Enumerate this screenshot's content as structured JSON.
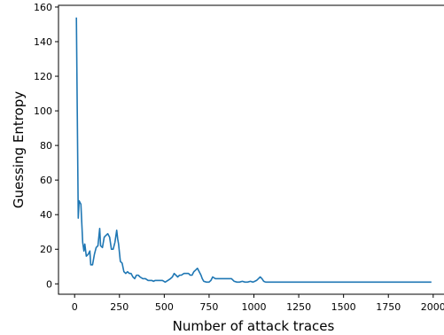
{
  "chart_data": {
    "type": "line",
    "title": "",
    "xlabel": "Number of attack traces",
    "ylabel": "Guessing Entropy",
    "xlim": [
      -90,
      2085
    ],
    "ylim": [
      -6,
      161
    ],
    "xticks": [
      0,
      250,
      500,
      750,
      1000,
      1250,
      1500,
      1750,
      2000
    ],
    "xtick_labels": [
      "0",
      "250",
      "500",
      "750",
      "1000",
      "1250",
      "1500",
      "1750",
      "2000"
    ],
    "yticks": [
      0,
      20,
      40,
      60,
      80,
      100,
      120,
      140,
      160
    ],
    "ytick_labels": [
      "0",
      "20",
      "40",
      "60",
      "80",
      "100",
      "120",
      "140",
      "160"
    ],
    "grid": false,
    "legend": "none",
    "series": [
      {
        "color": "#1f77b4",
        "points": [
          [
            10,
            154
          ],
          [
            20,
            38
          ],
          [
            25,
            48
          ],
          [
            35,
            46
          ],
          [
            45,
            24
          ],
          [
            52,
            19
          ],
          [
            57,
            23
          ],
          [
            65,
            16
          ],
          [
            75,
            17
          ],
          [
            85,
            19
          ],
          [
            90,
            11
          ],
          [
            100,
            11
          ],
          [
            110,
            17
          ],
          [
            120,
            21
          ],
          [
            130,
            22
          ],
          [
            140,
            32
          ],
          [
            145,
            22
          ],
          [
            155,
            21
          ],
          [
            165,
            27
          ],
          [
            175,
            28
          ],
          [
            185,
            29
          ],
          [
            195,
            27
          ],
          [
            205,
            20
          ],
          [
            215,
            20
          ],
          [
            225,
            24
          ],
          [
            235,
            31
          ],
          [
            240,
            26
          ],
          [
            245,
            23
          ],
          [
            255,
            13
          ],
          [
            265,
            12
          ],
          [
            275,
            7
          ],
          [
            285,
            6
          ],
          [
            295,
            7
          ],
          [
            305,
            6
          ],
          [
            315,
            6
          ],
          [
            325,
            4
          ],
          [
            335,
            3
          ],
          [
            345,
            5
          ],
          [
            355,
            5
          ],
          [
            365,
            4
          ],
          [
            380,
            3
          ],
          [
            395,
            3
          ],
          [
            410,
            2
          ],
          [
            430,
            2
          ],
          [
            440,
            1.5
          ],
          [
            450,
            2
          ],
          [
            470,
            2
          ],
          [
            490,
            2
          ],
          [
            505,
            1
          ],
          [
            520,
            2
          ],
          [
            535,
            3
          ],
          [
            545,
            4
          ],
          [
            555,
            6
          ],
          [
            565,
            5
          ],
          [
            575,
            4
          ],
          [
            585,
            5
          ],
          [
            595,
            5
          ],
          [
            610,
            6
          ],
          [
            625,
            6
          ],
          [
            635,
            6
          ],
          [
            645,
            5
          ],
          [
            655,
            5
          ],
          [
            665,
            7
          ],
          [
            675,
            8
          ],
          [
            685,
            9
          ],
          [
            695,
            7
          ],
          [
            705,
            5
          ],
          [
            712,
            3
          ],
          [
            720,
            1.5
          ],
          [
            735,
            1
          ],
          [
            750,
            1
          ],
          [
            760,
            2
          ],
          [
            770,
            4
          ],
          [
            785,
            3
          ],
          [
            800,
            3
          ],
          [
            815,
            3
          ],
          [
            830,
            3
          ],
          [
            845,
            3
          ],
          [
            860,
            3
          ],
          [
            875,
            3
          ],
          [
            890,
            1.5
          ],
          [
            905,
            1
          ],
          [
            920,
            1
          ],
          [
            935,
            1.5
          ],
          [
            950,
            1
          ],
          [
            965,
            1
          ],
          [
            980,
            1.5
          ],
          [
            995,
            1
          ],
          [
            1005,
            1.5
          ],
          [
            1015,
            2
          ],
          [
            1025,
            3
          ],
          [
            1035,
            4
          ],
          [
            1045,
            3
          ],
          [
            1055,
            1.5
          ],
          [
            1065,
            1
          ],
          [
            1100,
            1
          ],
          [
            1200,
            1
          ],
          [
            1300,
            1
          ],
          [
            1400,
            1
          ],
          [
            1500,
            1
          ],
          [
            1600,
            1
          ],
          [
            1700,
            1
          ],
          [
            1800,
            1
          ],
          [
            1900,
            1
          ],
          [
            1990,
            1
          ]
        ]
      }
    ]
  }
}
